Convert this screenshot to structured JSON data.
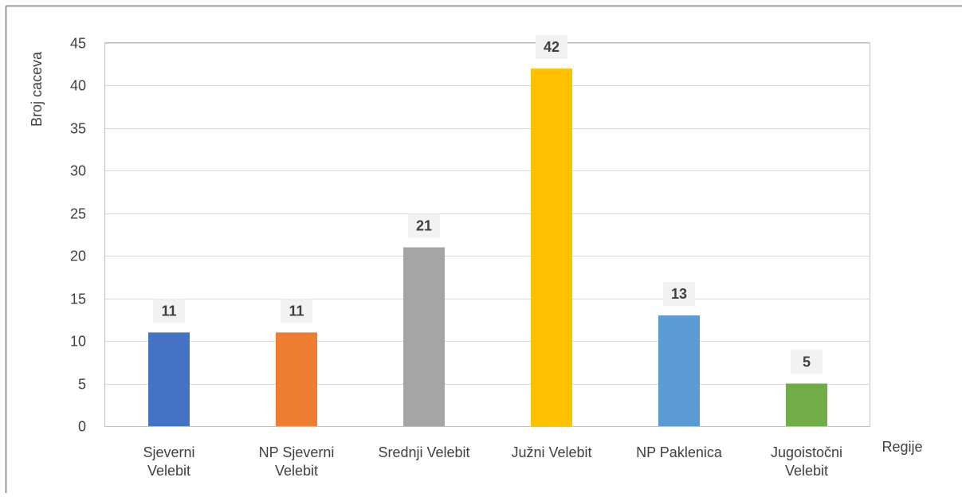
{
  "chart_data": {
    "type": "bar",
    "categories": [
      [
        "Sjeverni",
        "Velebit"
      ],
      [
        "NP Sjeverni",
        "Velebit"
      ],
      [
        "Srednji Velebit"
      ],
      [
        "Južni Velebit"
      ],
      [
        "NP Paklenica"
      ],
      [
        "Jugoistočni",
        "Velebit"
      ]
    ],
    "values": [
      11,
      11,
      21,
      42,
      13,
      5
    ],
    "data_labels": [
      "11",
      "11",
      "21",
      "42",
      "13",
      "5"
    ],
    "colors": [
      "#4472C4",
      "#ED7D31",
      "#A5A5A5",
      "#FFC000",
      "#5B9BD5",
      "#70AD47"
    ],
    "xlabel": "Regije",
    "ylabel": "Broj caceva",
    "ylim": [
      0,
      45
    ],
    "yticks": [
      0,
      5,
      10,
      15,
      20,
      25,
      30,
      35,
      40,
      45
    ],
    "grid": true,
    "legend": "none",
    "title": ""
  }
}
